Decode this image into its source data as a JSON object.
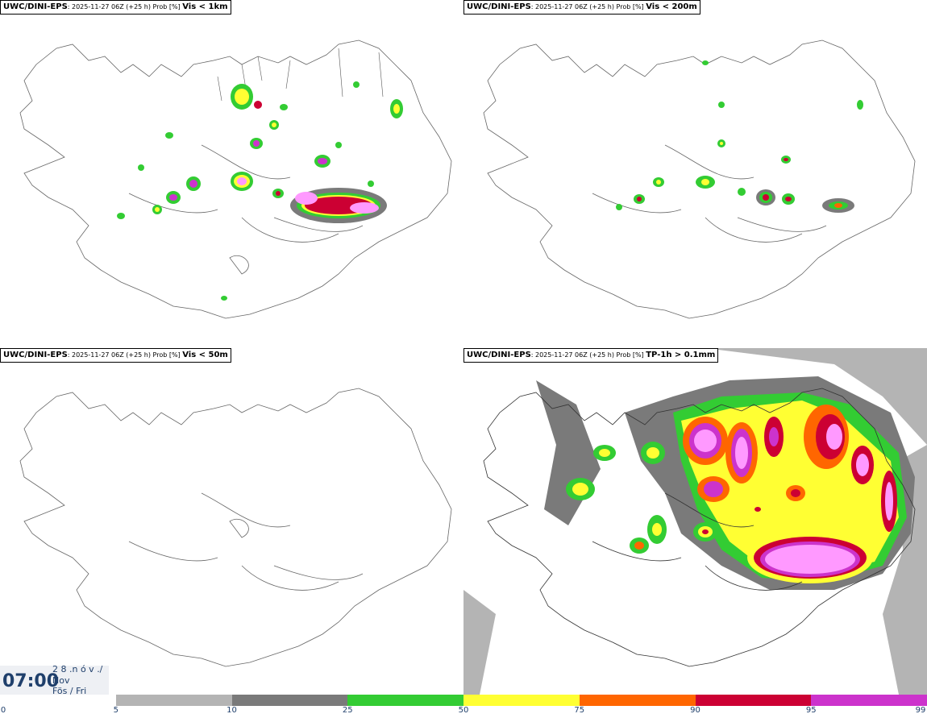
{
  "panels": [
    {
      "source": "UWC/DINI-EPS",
      "meta": ": 2025-11-27 06Z (+25 h) Prob [%] ",
      "variable": "Vis < 1km"
    },
    {
      "source": "UWC/DINI-EPS",
      "meta": ": 2025-11-27 06Z (+25 h) Prob [%] ",
      "variable": "Vis < 200m"
    },
    {
      "source": "UWC/DINI-EPS",
      "meta": ": 2025-11-27 06Z (+25 h) Prob [%] ",
      "variable": "Vis < 50m"
    },
    {
      "source": "UWC/DINI-EPS",
      "meta": ": 2025-11-27 06Z (+25 h) Prob [%] ",
      "variable": "TP-1h > 0.1mm"
    }
  ],
  "time_display": {
    "time": "07:00",
    "date_line1": "2 8 .n ó v ./",
    "date_line2": "Nov",
    "date_line3": "Fös / Fri"
  },
  "legend": {
    "ticks": [
      "0",
      "5",
      "10",
      "25",
      "50",
      "75",
      "90",
      "95",
      "99"
    ],
    "colors": [
      "#ffffff",
      "#b4b4b4",
      "#7a7a7a",
      "#33cc33",
      "#ffff33",
      "#ff6600",
      "#cc0033",
      "#cc33cc",
      "#ff99ff"
    ]
  }
}
